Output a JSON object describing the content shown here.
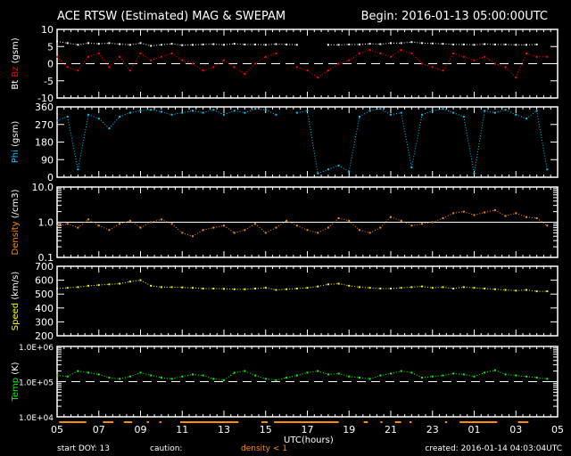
{
  "title": "ACE RTSW (Estimated) MAG & SWEPAM",
  "begin": "Begin: 2016-01-13 05:00:00UTC",
  "footer": {
    "start_doy": "start DOY:  13",
    "caution": "caution:",
    "caution_note": "density < 1",
    "created": "created: 2016-01-14 04:03:04UTC"
  },
  "colors": {
    "bt": "#ffffff",
    "bz": "#ff0000",
    "phi": "#00c8ff",
    "density": "#ff8c00",
    "speed": "#ffff00",
    "temp": "#00ff00",
    "caution": "#ff8c00"
  },
  "chart_data": {
    "type": "scatter",
    "xlabel": "UTC(hours)",
    "x_ticks": [
      "05",
      "07",
      "09",
      "11",
      "13",
      "15",
      "17",
      "19",
      "21",
      "23",
      "01",
      "03",
      "05"
    ],
    "x_range_hours": [
      0,
      24
    ],
    "x": [
      0,
      0.5,
      1,
      1.5,
      2,
      2.5,
      3,
      3.5,
      4,
      4.5,
      5,
      5.5,
      6,
      6.5,
      7,
      7.5,
      8,
      8.5,
      9,
      9.5,
      10,
      10.5,
      11,
      11.5,
      12,
      12.5,
      13,
      13.5,
      14,
      14.5,
      15,
      15.5,
      16,
      16.5,
      17,
      17.5,
      18,
      18.5,
      19,
      19.5,
      20,
      20.5,
      21,
      21.5,
      22,
      22.5,
      23,
      23.5
    ],
    "panels": [
      {
        "ylabel_parts": [
          "Bt",
          "Bz",
          "(gsm)"
        ],
        "scale": "linear",
        "ylim": [
          -10,
          10
        ],
        "y_ticks": [
          "10",
          "5",
          "0",
          "-5",
          "-10"
        ],
        "ref_line": 0,
        "series": [
          {
            "name": "Bt",
            "values": [
              6.5,
              6,
              5.5,
              6,
              5.8,
              6,
              5.7,
              5.5,
              6,
              5.2,
              5.5,
              5.8,
              5.4,
              5.5,
              5.6,
              5.7,
              5.5,
              5.8,
              5.6,
              5.6,
              5.5,
              5.7,
              5.6,
              5.5,
              null,
              null,
              5.5,
              5.5,
              5.6,
              5.6,
              5.8,
              5.7,
              6,
              6,
              6.3,
              6,
              5.9,
              5.8,
              5.6,
              5.6,
              5.5,
              5.7,
              5.6,
              5.6,
              5.5,
              5.5,
              5.6,
              null
            ]
          },
          {
            "name": "Bz",
            "values": [
              2,
              -1,
              -2,
              2,
              3,
              -1,
              2,
              -2,
              3,
              1,
              2,
              3,
              1,
              0,
              -2,
              -1,
              1,
              -1,
              -3,
              0,
              2,
              3,
              null,
              -1,
              -2,
              -4,
              -2,
              0,
              1,
              3,
              4,
              3,
              2,
              4,
              3,
              0,
              -1,
              -2,
              3,
              2,
              1,
              2,
              0,
              -1,
              -4,
              3,
              2,
              2
            ]
          }
        ]
      },
      {
        "ylabel_parts": [
          "Phi",
          "(gsm)"
        ],
        "scale": "linear",
        "ylim": [
          0,
          360
        ],
        "y_ticks": [
          "360",
          "270",
          "180",
          "90",
          "0"
        ],
        "series": [
          {
            "name": "Phi",
            "values": [
              290,
              310,
              40,
              320,
              300,
              250,
              310,
              330,
              340,
              345,
              335,
              320,
              330,
              340,
              330,
              345,
              320,
              340,
              330,
              350,
              345,
              320,
              null,
              330,
              340,
              20,
              40,
              60,
              30,
              310,
              340,
              350,
              320,
              330,
              50,
              320,
              340,
              350,
              330,
              310,
              20,
              340,
              330,
              345,
              320,
              300,
              340,
              40
            ]
          }
        ]
      },
      {
        "ylabel_parts": [
          "Density",
          "(/cm3)"
        ],
        "scale": "log",
        "ylim": [
          0.1,
          10
        ],
        "y_ticks": [
          "10.0",
          "1.0",
          "0.1"
        ],
        "ref_line": 1,
        "series": [
          {
            "name": "Density",
            "values": [
              0.8,
              0.9,
              0.7,
              1.2,
              0.8,
              0.6,
              0.9,
              1.1,
              0.7,
              1.0,
              1.2,
              0.9,
              0.5,
              0.4,
              0.6,
              0.7,
              0.8,
              0.5,
              0.6,
              0.9,
              0.5,
              0.7,
              1.1,
              0.8,
              0.6,
              0.5,
              0.7,
              1.3,
              1.1,
              0.6,
              0.5,
              0.7,
              1.4,
              1.1,
              0.8,
              0.9,
              1.0,
              1.3,
              1.8,
              2.0,
              1.6,
              1.9,
              2.2,
              1.5,
              1.8,
              1.4,
              1.3,
              0.8
            ]
          }
        ]
      },
      {
        "ylabel_parts": [
          "Speed",
          "(km/s)"
        ],
        "scale": "linear",
        "ylim": [
          200,
          700
        ],
        "y_ticks": [
          "700",
          "600",
          "500",
          "400",
          "300",
          "200"
        ],
        "series": [
          {
            "name": "Speed",
            "values": [
              540,
              545,
              550,
              560,
              565,
              570,
              575,
              590,
              600,
              560,
              550,
              550,
              548,
              545,
              540,
              540,
              538,
              535,
              535,
              540,
              545,
              530,
              535,
              540,
              545,
              555,
              570,
              575,
              560,
              550,
              545,
              540,
              540,
              545,
              550,
              555,
              545,
              550,
              540,
              550,
              545,
              540,
              535,
              530,
              525,
              530,
              520,
              520
            ]
          }
        ]
      },
      {
        "ylabel_parts": [
          "Temp",
          "(K)"
        ],
        "scale": "log",
        "ylim": [
          10000,
          1000000
        ],
        "y_ticks": [
          "1.0E+06",
          "1.0E+05",
          "1.0E+04"
        ],
        "ref_line": 100000,
        "series": [
          {
            "name": "Temp",
            "values": [
              150000,
              140000,
              200000,
              180000,
              160000,
              130000,
              120000,
              140000,
              180000,
              150000,
              130000,
              120000,
              140000,
              160000,
              150000,
              120000,
              110000,
              180000,
              200000,
              150000,
              120000,
              110000,
              130000,
              150000,
              180000,
              200000,
              160000,
              170000,
              140000,
              130000,
              120000,
              150000,
              170000,
              200000,
              180000,
              130000,
              140000,
              150000,
              170000,
              160000,
              140000,
              180000,
              210000,
              160000,
              150000,
              140000,
              130000,
              120000
            ]
          }
        ]
      }
    ],
    "caution_intervals_hours": [
      [
        0.1,
        1.4
      ],
      [
        2.2,
        2.7
      ],
      [
        3.2,
        3.6
      ],
      [
        4.3,
        4.4
      ],
      [
        4.9,
        5.0
      ],
      [
        5.9,
        8.7
      ],
      [
        9.8,
        10.1
      ],
      [
        10.4,
        13.5
      ],
      [
        14.7,
        14.9
      ],
      [
        15.5,
        15.6
      ],
      [
        16.2,
        16.5
      ],
      [
        16.9,
        17.0
      ],
      [
        18.6,
        18.7
      ],
      [
        19.3,
        21.1
      ],
      [
        22.1,
        22.6
      ]
    ]
  }
}
